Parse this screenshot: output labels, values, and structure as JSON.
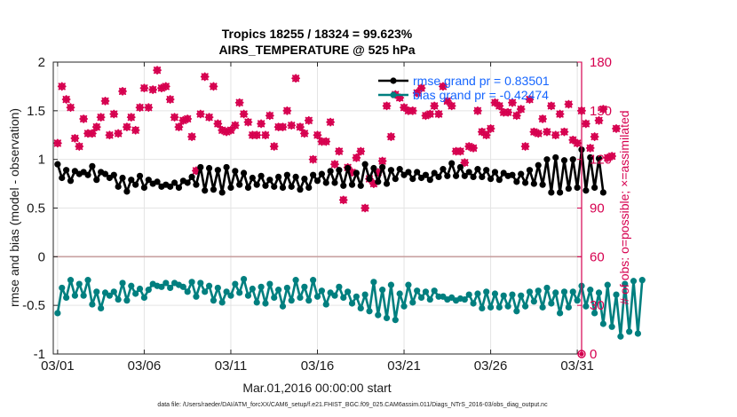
{
  "chart_data": {
    "type": "line",
    "title_line1": "Tropics 18255 / 18324 = 99.623%",
    "title_line2": "AIRS_TEMPERATURE @ 525 hPa",
    "xlabel": "Mar.01,2016 00:00:00 start",
    "ylabel": "rmse and bias (model - observation)",
    "ylabel_right": "# of obs: o=possible; ×=assimilated",
    "footer": "data file: /Users/raeder/DAI/ATM_forcXX/CAM6_setup/f.e21.FHIST_BGC.f09_025.CAM6assim.011/Diags_NTrS_2016-03/obs_diag_output.nc",
    "xlim": [
      0.75,
      31.25
    ],
    "ylim": [
      -1,
      2
    ],
    "ylim_right": [
      0,
      180
    ],
    "x_ticks": [
      {
        "value": 1,
        "label": "03/01"
      },
      {
        "value": 6,
        "label": "03/06"
      },
      {
        "value": 11,
        "label": "03/11"
      },
      {
        "value": 16,
        "label": "03/16"
      },
      {
        "value": 21,
        "label": "03/21"
      },
      {
        "value": 26,
        "label": "03/26"
      },
      {
        "value": 31,
        "label": "03/31"
      }
    ],
    "y_ticks_left": [
      {
        "value": -1,
        "label": "-1"
      },
      {
        "value": -0.5,
        "label": "-0.5"
      },
      {
        "value": 0,
        "label": "0"
      },
      {
        "value": 0.5,
        "label": "0.5"
      },
      {
        "value": 1,
        "label": "1"
      },
      {
        "value": 1.5,
        "label": "1.5"
      },
      {
        "value": 2,
        "label": "2"
      }
    ],
    "y_ticks_right": [
      {
        "value": 0,
        "label": "0"
      },
      {
        "value": 30,
        "label": "30"
      },
      {
        "value": 60,
        "label": "60"
      },
      {
        "value": 90,
        "label": "90"
      },
      {
        "value": 120,
        "label": "120"
      },
      {
        "value": 150,
        "label": "150"
      },
      {
        "value": 180,
        "label": "180"
      }
    ],
    "legend": [
      {
        "name": "rmse",
        "label": "rmse grand pr = 0.83501"
      },
      {
        "name": "bias",
        "label": "bias grand pr = -0.42474"
      }
    ],
    "colors": {
      "rmse": "#000000",
      "bias": "#007f7f",
      "obs": "#d6004f",
      "zero_line": "#c8a0a0",
      "grid": "#e4e4e4"
    },
    "x_start": 1,
    "x_step": 0.25,
    "series": [
      {
        "name": "rmse",
        "axis": "left",
        "values": [
          0.95,
          0.81,
          0.89,
          0.78,
          0.88,
          0.85,
          0.87,
          0.84,
          0.93,
          0.79,
          0.87,
          0.85,
          0.81,
          0.84,
          0.72,
          0.81,
          0.67,
          0.79,
          0.74,
          0.83,
          0.71,
          0.79,
          0.75,
          0.77,
          0.72,
          0.74,
          0.72,
          0.76,
          0.71,
          0.78,
          0.76,
          0.82,
          0.74,
          0.92,
          0.68,
          0.91,
          0.69,
          0.89,
          0.66,
          0.92,
          0.71,
          0.88,
          0.74,
          0.86,
          0.71,
          0.81,
          0.74,
          0.83,
          0.73,
          0.79,
          0.72,
          0.82,
          0.71,
          0.84,
          0.72,
          0.82,
          0.69,
          0.8,
          0.71,
          0.84,
          0.78,
          0.85,
          0.76,
          0.88,
          0.76,
          0.89,
          0.73,
          0.91,
          0.74,
          0.86,
          0.73,
          0.95,
          0.8,
          0.91,
          0.77,
          0.92,
          0.75,
          0.89,
          0.8,
          0.9,
          0.84,
          0.87,
          0.8,
          0.87,
          0.81,
          0.84,
          0.79,
          0.86,
          0.82,
          0.9,
          0.83,
          0.96,
          0.83,
          0.92,
          0.83,
          0.87,
          0.82,
          0.9,
          0.82,
          0.89,
          0.8,
          0.87,
          0.79,
          0.86,
          0.83,
          0.84,
          0.77,
          0.85,
          0.76,
          0.89,
          0.75,
          0.94,
          0.74,
          1.0,
          0.66,
          1.02,
          0.66,
          0.99,
          0.7,
          1.0,
          0.71,
          1.1,
          0.68,
          1.02,
          0.71,
          1.01,
          0.66
        ]
      },
      {
        "name": "bias",
        "axis": "left",
        "values": [
          -0.58,
          -0.32,
          -0.42,
          -0.24,
          -0.4,
          -0.28,
          -0.4,
          -0.24,
          -0.49,
          -0.36,
          -0.53,
          -0.37,
          -0.4,
          -0.36,
          -0.44,
          -0.27,
          -0.45,
          -0.3,
          -0.38,
          -0.33,
          -0.42,
          -0.34,
          -0.28,
          -0.3,
          -0.31,
          -0.27,
          -0.32,
          -0.27,
          -0.29,
          -0.31,
          -0.36,
          -0.26,
          -0.41,
          -0.27,
          -0.36,
          -0.3,
          -0.45,
          -0.32,
          -0.47,
          -0.36,
          -0.4,
          -0.28,
          -0.37,
          -0.23,
          -0.4,
          -0.33,
          -0.47,
          -0.31,
          -0.48,
          -0.28,
          -0.42,
          -0.34,
          -0.51,
          -0.32,
          -0.45,
          -0.24,
          -0.42,
          -0.31,
          -0.45,
          -0.24,
          -0.41,
          -0.35,
          -0.49,
          -0.37,
          -0.4,
          -0.31,
          -0.42,
          -0.36,
          -0.48,
          -0.41,
          -0.53,
          -0.39,
          -0.56,
          -0.26,
          -0.6,
          -0.34,
          -0.63,
          -0.29,
          -0.65,
          -0.38,
          -0.51,
          -0.29,
          -0.47,
          -0.35,
          -0.42,
          -0.36,
          -0.44,
          -0.35,
          -0.41,
          -0.41,
          -0.44,
          -0.42,
          -0.45,
          -0.43,
          -0.44,
          -0.39,
          -0.48,
          -0.38,
          -0.53,
          -0.36,
          -0.52,
          -0.38,
          -0.52,
          -0.4,
          -0.51,
          -0.39,
          -0.56,
          -0.4,
          -0.51,
          -0.36,
          -0.46,
          -0.35,
          -0.52,
          -0.32,
          -0.48,
          -0.37,
          -0.58,
          -0.36,
          -0.52,
          -0.36,
          -0.45,
          -0.3,
          -0.51,
          -0.34,
          -0.58,
          -0.37,
          -0.69,
          -0.29,
          -0.72,
          -0.39,
          -0.82,
          -0.28,
          -0.77,
          -0.25,
          -0.79,
          -0.24
        ]
      },
      {
        "name": "obs_possible",
        "axis": "right",
        "marker": "circle",
        "values": [
          130,
          165,
          157,
          152,
          133,
          128,
          145,
          136,
          136,
          140,
          146,
          156,
          135,
          148,
          136,
          162,
          140,
          146,
          138,
          152,
          164,
          152,
          163,
          175,
          164,
          165,
          157,
          146,
          140,
          144,
          145,
          134,
          113,
          148,
          171,
          146,
          165,
          142,
          138,
          137,
          138,
          141,
          155,
          148,
          143,
          135,
          135,
          142,
          135,
          147,
          128,
          140,
          140,
          150,
          141,
          170,
          140,
          136,
          144,
          120,
          135,
          131,
          131,
          143,
          117,
          125,
          95,
          115,
          112,
          121,
          125,
          90,
          108,
          105,
          112,
          119,
          153,
          134,
          160,
          158,
          152,
          150,
          150,
          161,
          164,
          147,
          148,
          153,
          148,
          165,
          156,
          153,
          125,
          125,
          118,
          128,
          127,
          150,
          137,
          135,
          139,
          155,
          153,
          149,
          149,
          155,
          147,
          151,
          128,
          157,
          137,
          136,
          145,
          137,
          153,
          135,
          148,
          137,
          154,
          132,
          130,
          150,
          142,
          127,
          134,
          144,
          151,
          121,
          122,
          139
        ]
      },
      {
        "name": "obs_assimilated",
        "axis": "right",
        "marker": "x",
        "values": [
          130,
          165,
          157,
          152,
          133,
          128,
          145,
          136,
          136,
          140,
          146,
          156,
          135,
          148,
          136,
          162,
          140,
          146,
          138,
          152,
          164,
          152,
          163,
          175,
          164,
          165,
          157,
          146,
          140,
          144,
          145,
          134,
          113,
          148,
          171,
          146,
          165,
          142,
          138,
          137,
          138,
          141,
          155,
          148,
          143,
          135,
          135,
          142,
          135,
          147,
          128,
          140,
          140,
          150,
          141,
          170,
          140,
          136,
          144,
          120,
          135,
          131,
          131,
          143,
          117,
          125,
          95,
          115,
          112,
          121,
          125,
          90,
          108,
          105,
          112,
          119,
          153,
          134,
          160,
          158,
          152,
          150,
          150,
          161,
          164,
          147,
          148,
          153,
          148,
          165,
          156,
          153,
          125,
          125,
          118,
          128,
          127,
          150,
          137,
          135,
          139,
          155,
          153,
          149,
          149,
          155,
          147,
          151,
          128,
          157,
          137,
          136,
          145,
          137,
          153,
          135,
          148,
          137,
          154,
          132,
          130,
          150,
          142,
          127,
          134,
          144,
          151,
          121,
          122,
          139
        ]
      }
    ]
  }
}
